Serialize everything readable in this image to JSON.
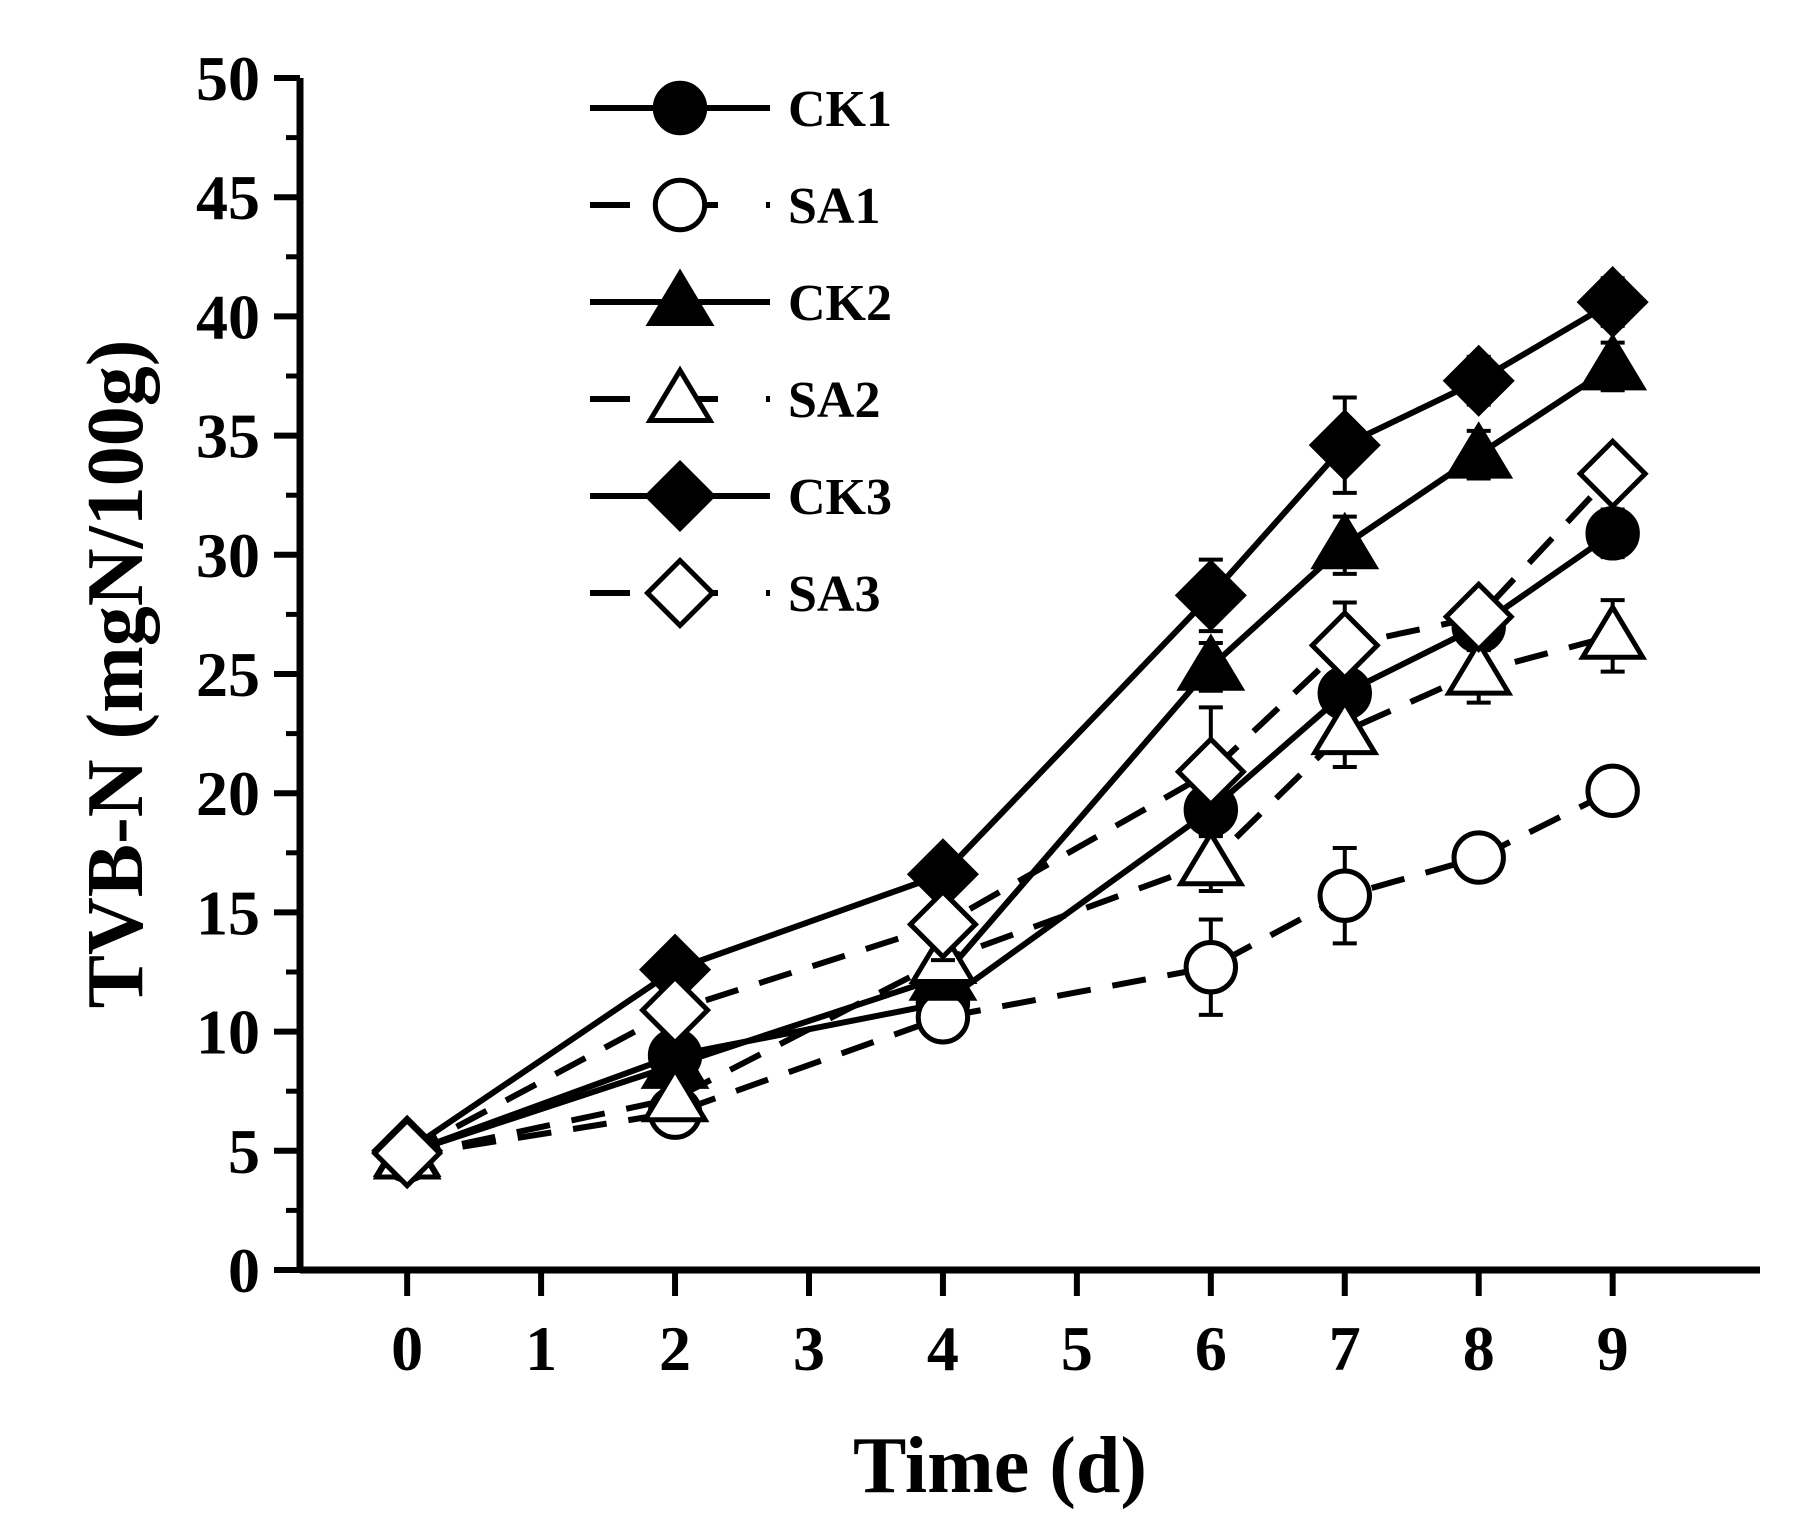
{
  "chart_data": {
    "type": "line",
    "title": "",
    "xlabel": "Time (d)",
    "ylabel": "TVB-N (mgN/100g)",
    "x": [
      0,
      2,
      4,
      6,
      7,
      8,
      9
    ],
    "xticks": [
      0,
      1,
      2,
      3,
      4,
      5,
      6,
      7,
      8,
      9
    ],
    "xlim": [
      -0.8,
      10.1
    ],
    "ylim": [
      0,
      50
    ],
    "yticks": [
      0,
      5,
      10,
      15,
      20,
      25,
      30,
      35,
      40,
      45,
      50
    ],
    "legend_position": "top-left",
    "grid": false,
    "series": [
      {
        "name": "CK1",
        "marker": "circle",
        "filled": true,
        "dashed": false,
        "values": [
          4.9,
          9.0,
          11.2,
          19.3,
          24.2,
          27.0,
          30.9
        ],
        "errors": [
          0.4,
          0.5,
          0.6,
          1.0,
          1.0,
          1.0,
          1.0
        ]
      },
      {
        "name": "SA1",
        "marker": "circle",
        "filled": false,
        "dashed": true,
        "values": [
          4.8,
          6.6,
          10.6,
          12.7,
          15.7,
          17.3,
          20.1
        ],
        "errors": [
          0.4,
          0.6,
          0.6,
          2.0,
          2.0,
          0.6,
          0.5
        ]
      },
      {
        "name": "CK2",
        "marker": "triangle",
        "filled": true,
        "dashed": false,
        "values": [
          4.9,
          8.6,
          12.3,
          25.3,
          30.4,
          34.2,
          37.9
        ],
        "errors": [
          0.4,
          0.5,
          0.6,
          1.0,
          1.2,
          1.0,
          1.0
        ]
      },
      {
        "name": "SA2",
        "marker": "triangle",
        "filled": false,
        "dashed": true,
        "values": [
          4.8,
          7.2,
          13.0,
          17.1,
          22.6,
          25.1,
          26.6
        ],
        "errors": [
          0.4,
          0.6,
          0.6,
          1.2,
          1.5,
          1.3,
          1.5
        ]
      },
      {
        "name": "CK3",
        "marker": "diamond",
        "filled": true,
        "dashed": false,
        "values": [
          5.0,
          12.6,
          16.6,
          28.3,
          34.6,
          37.3,
          40.6
        ],
        "errors": [
          0.3,
          0.5,
          0.6,
          1.5,
          2.0,
          1.0,
          1.0
        ]
      },
      {
        "name": "SA3",
        "marker": "diamond",
        "filled": false,
        "dashed": true,
        "values": [
          4.9,
          10.9,
          14.5,
          20.9,
          26.2,
          27.4,
          33.4
        ],
        "errors": [
          0.4,
          0.8,
          1.5,
          2.7,
          1.8,
          0.8,
          0.9
        ]
      }
    ]
  }
}
